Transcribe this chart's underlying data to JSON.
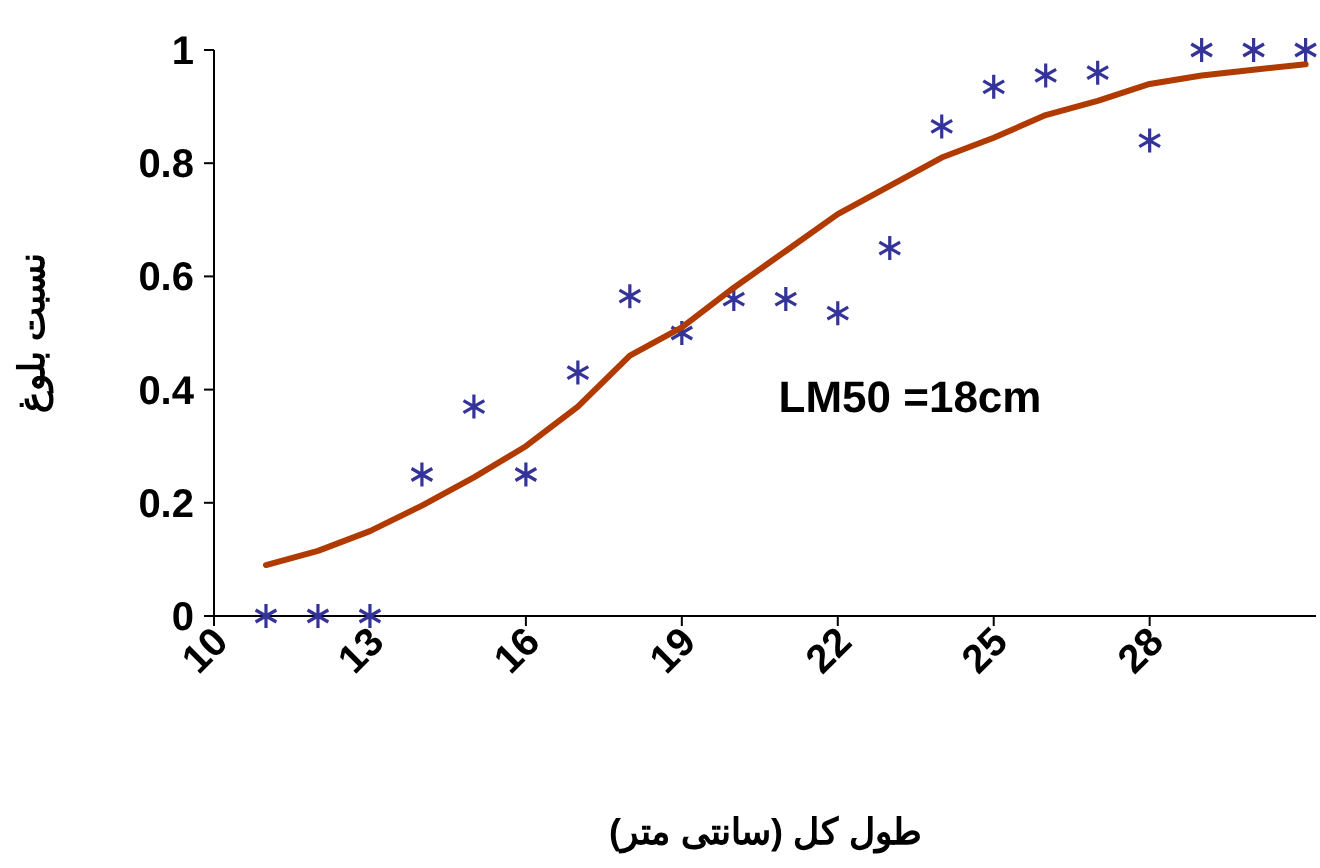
{
  "chart_data": {
    "type": "scatter",
    "xlabel": "طول کل (سانتی متر)",
    "ylabel": "نسبت بلوغ",
    "annotations": [
      "LM50 =18cm"
    ],
    "xlim": [
      10,
      31.2
    ],
    "ylim": [
      0,
      1
    ],
    "xticks": [
      10,
      13,
      16,
      19,
      22,
      25,
      28
    ],
    "yticks": [
      0,
      {
        "value": 0.2,
        "label": "0.2"
      },
      {
        "value": 0.4,
        "label": "0.4"
      },
      {
        "value": 0.6,
        "label": "0.6"
      },
      {
        "value": 0.8,
        "label": "0.8"
      },
      1
    ],
    "grid": false,
    "series": [
      {
        "color": "#333399",
        "marker": "cross",
        "x": [
          11,
          12,
          13,
          14,
          15,
          16,
          17,
          18,
          19,
          20,
          21,
          22,
          23,
          24,
          25,
          26,
          27,
          28,
          29,
          30,
          31
        ],
        "values": [
          0,
          0,
          0,
          0.25,
          0.37,
          0.25,
          0.43,
          0.565,
          0.5,
          0.56,
          0.56,
          0.535,
          0.65,
          0.865,
          0.935,
          0.955,
          0.96,
          0.84,
          1,
          1,
          1
        ]
      },
      {
        "type": "line",
        "color": "#b03a00",
        "marker": "none",
        "line_style": "solid",
        "x": [
          11,
          12,
          13,
          14,
          15,
          16,
          17,
          18,
          19,
          20,
          21,
          22,
          23,
          24,
          25,
          26,
          27,
          28,
          29,
          30,
          31
        ],
        "values": [
          0.09,
          0.115,
          0.15,
          0.195,
          0.245,
          0.3,
          0.37,
          0.46,
          0.51,
          0.58,
          0.645,
          0.71,
          0.76,
          0.81,
          0.845,
          0.885,
          0.91,
          0.94,
          0.955,
          0.965,
          0.975
        ]
      }
    ]
  }
}
